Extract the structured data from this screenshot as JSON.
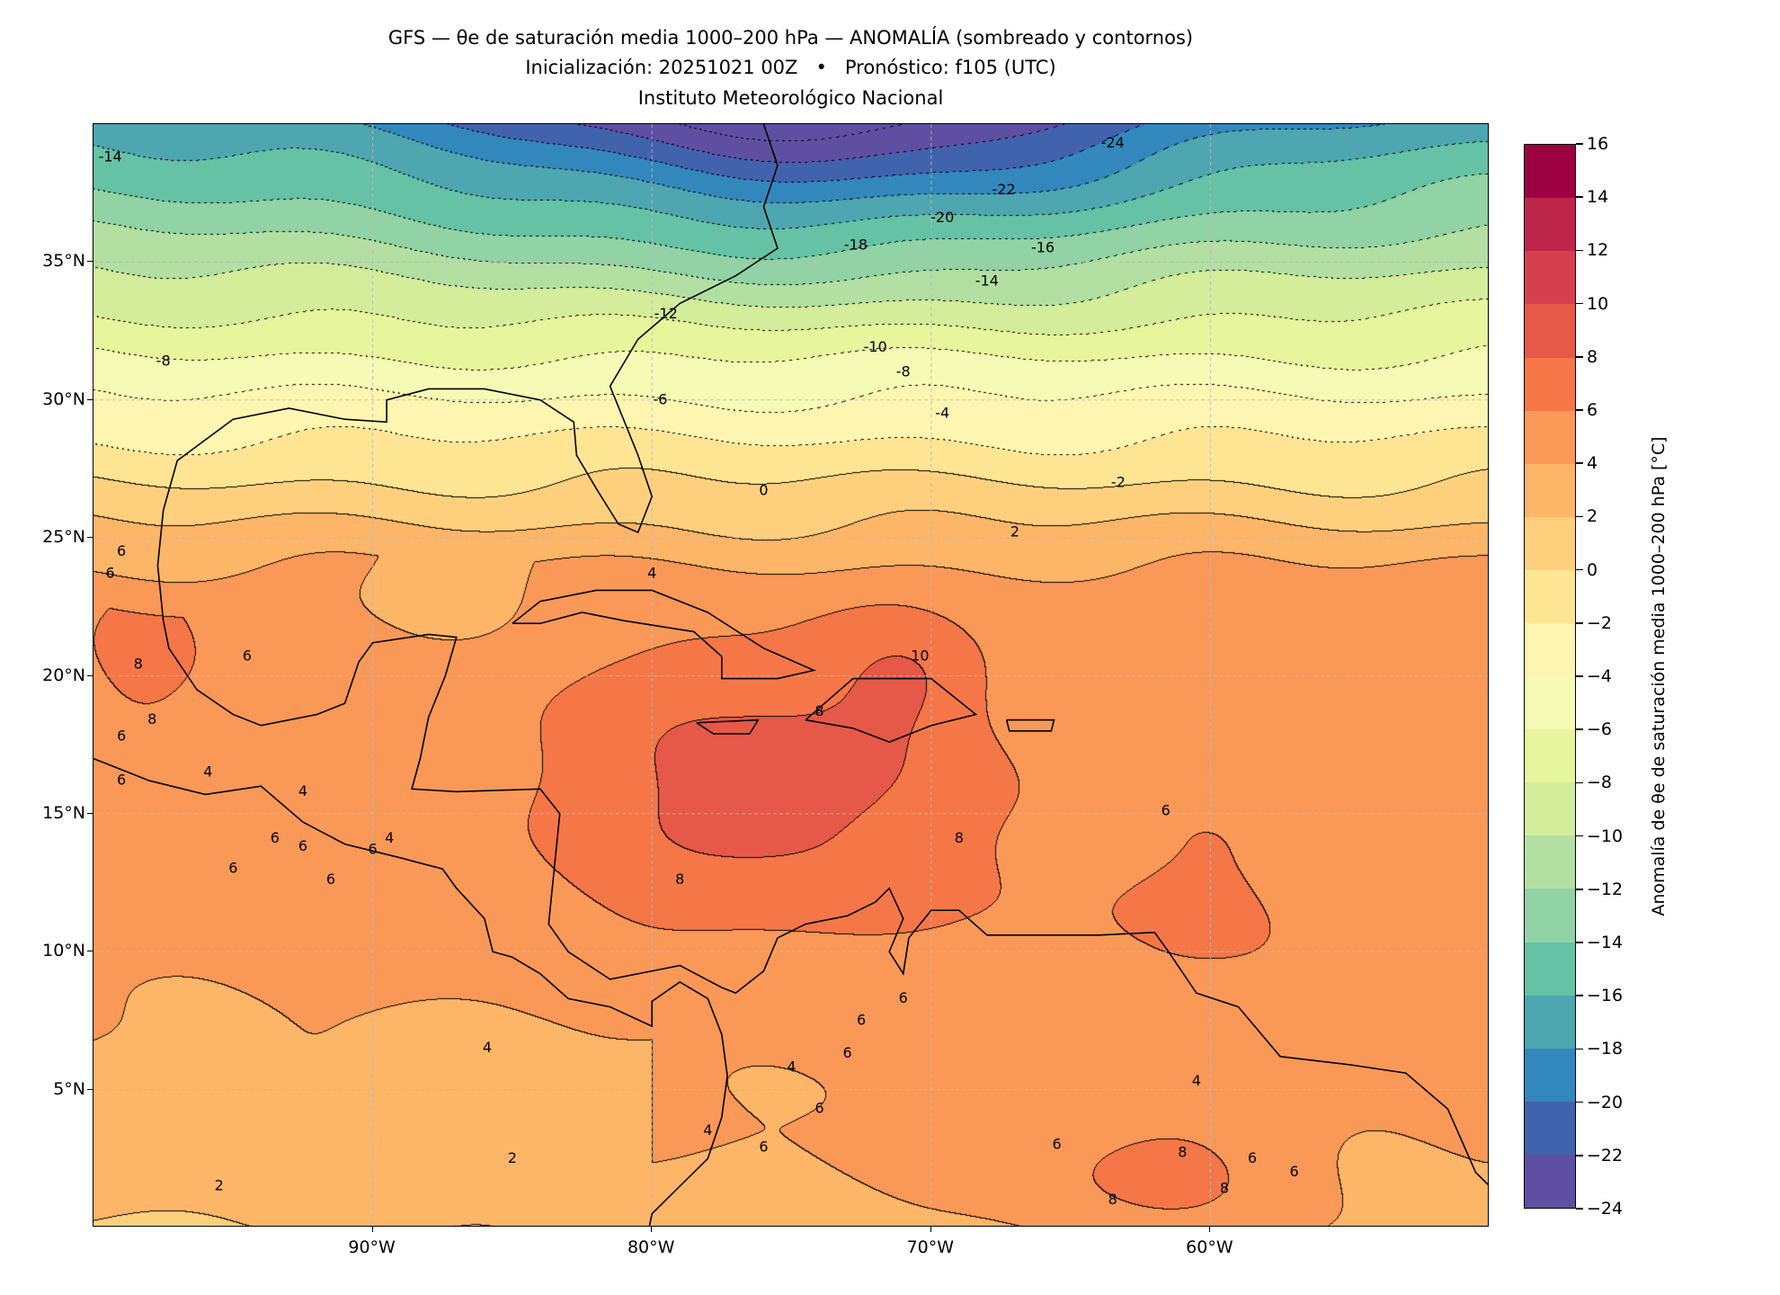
{
  "header": {
    "title_line1": "GFS — θe de saturación media 1000–200 hPa — ANOMALÍA (sombreado y contornos)",
    "title_line2": "Inicialización: 20251021 00Z   •   Pronóstico: f105 (UTC)",
    "title_line3": "Instituto Meteorológico Nacional"
  },
  "chart_data": {
    "type": "heatmap",
    "subtype": "filled-contour map",
    "title": "GFS — θe de saturación media 1000–200 hPa — ANOMALÍA (sombreado y contornos)",
    "lon_range": [
      -100,
      -50
    ],
    "lat_range": [
      0,
      40
    ],
    "lat_ticks": [
      {
        "value": 5,
        "label": "5°N"
      },
      {
        "value": 10,
        "label": "10°N"
      },
      {
        "value": 15,
        "label": "15°N"
      },
      {
        "value": 20,
        "label": "20°N"
      },
      {
        "value": 25,
        "label": "25°N"
      },
      {
        "value": 30,
        "label": "30°N"
      },
      {
        "value": 35,
        "label": "35°N"
      }
    ],
    "lon_ticks": [
      {
        "value": -90,
        "label": "90°W"
      },
      {
        "value": -80,
        "label": "80°W"
      },
      {
        "value": -70,
        "label": "70°W"
      },
      {
        "value": -60,
        "label": "60°W"
      }
    ],
    "grid": true,
    "levels": [
      -24,
      -22,
      -20,
      -18,
      -16,
      -14,
      -12,
      -10,
      -8,
      -6,
      -4,
      -2,
      0,
      2,
      4,
      6,
      8,
      10,
      12,
      14,
      16
    ],
    "level_labels": [
      "−24",
      "−22",
      "−20",
      "−18",
      "−16",
      "−14",
      "−12",
      "−10",
      "−8",
      "−6",
      "−4",
      "−2",
      "0",
      "2",
      "4",
      "6",
      "8",
      "10",
      "12",
      "14",
      "16"
    ],
    "colors": [
      "#5e4fa2",
      "#4163ae",
      "#3288bd",
      "#4ea6b0",
      "#66c2a5",
      "#91d3a4",
      "#b3e0a2",
      "#d3ed9b",
      "#e7f59c",
      "#f5fab5",
      "#fef6b0",
      "#fee593",
      "#fed07e",
      "#fdb567",
      "#fa9857",
      "#f57748",
      "#e65948",
      "#d5404e",
      "#be254a",
      "#9e0142"
    ],
    "colorbar_label": "Anomalía de θe de saturación media 1000–200 hPa [°C]",
    "colorbar_placement": "right",
    "contour_interval": 2,
    "negative_contour_style": "dotted",
    "contour_labels": [
      {
        "lon": -63.5,
        "lat": 39.3,
        "text": "-24"
      },
      {
        "lon": -67.4,
        "lat": 37.6,
        "text": "-22"
      },
      {
        "lon": -69.6,
        "lat": 36.6,
        "text": "-20"
      },
      {
        "lon": -72.7,
        "lat": 35.6,
        "text": "-18"
      },
      {
        "lon": -66.0,
        "lat": 35.5,
        "text": "-16"
      },
      {
        "lon": -68.0,
        "lat": 34.3,
        "text": "-14"
      },
      {
        "lon": -99.4,
        "lat": 38.8,
        "text": "-14"
      },
      {
        "lon": -79.5,
        "lat": 33.1,
        "text": "-12"
      },
      {
        "lon": -72.0,
        "lat": 31.9,
        "text": "-10"
      },
      {
        "lon": -71.0,
        "lat": 31.0,
        "text": "-8"
      },
      {
        "lon": -97.5,
        "lat": 31.4,
        "text": "-8"
      },
      {
        "lon": -79.7,
        "lat": 30.0,
        "text": "-6"
      },
      {
        "lon": -69.6,
        "lat": 29.5,
        "text": "-4"
      },
      {
        "lon": -63.3,
        "lat": 27.0,
        "text": "-2"
      },
      {
        "lon": -76.0,
        "lat": 26.7,
        "text": "0"
      },
      {
        "lon": -67.0,
        "lat": 25.2,
        "text": "2"
      },
      {
        "lon": -80.0,
        "lat": 23.7,
        "text": "4"
      },
      {
        "lon": -94.5,
        "lat": 20.7,
        "text": "6"
      },
      {
        "lon": -70.4,
        "lat": 20.7,
        "text": "10"
      },
      {
        "lon": -74.0,
        "lat": 18.7,
        "text": "8"
      },
      {
        "lon": -69.0,
        "lat": 14.1,
        "text": "8"
      },
      {
        "lon": -79.0,
        "lat": 12.6,
        "text": "8"
      },
      {
        "lon": -61.6,
        "lat": 15.1,
        "text": "6"
      },
      {
        "lon": -95.9,
        "lat": 16.5,
        "text": "4"
      },
      {
        "lon": -92.5,
        "lat": 15.8,
        "text": "4"
      },
      {
        "lon": -89.4,
        "lat": 14.1,
        "text": "4"
      },
      {
        "lon": -93.5,
        "lat": 14.1,
        "text": "6"
      },
      {
        "lon": -92.5,
        "lat": 13.8,
        "text": "6"
      },
      {
        "lon": -90.0,
        "lat": 13.7,
        "text": "6"
      },
      {
        "lon": -91.5,
        "lat": 12.6,
        "text": "6"
      },
      {
        "lon": -95.0,
        "lat": 13.0,
        "text": "6"
      },
      {
        "lon": -99.0,
        "lat": 24.5,
        "text": "6"
      },
      {
        "lon": -99.4,
        "lat": 23.7,
        "text": "6"
      },
      {
        "lon": -99.0,
        "lat": 17.8,
        "text": "6"
      },
      {
        "lon": -99.0,
        "lat": 16.2,
        "text": "6"
      },
      {
        "lon": -98.4,
        "lat": 20.4,
        "text": "8"
      },
      {
        "lon": -97.9,
        "lat": 18.4,
        "text": "8"
      },
      {
        "lon": -71.0,
        "lat": 8.3,
        "text": "6"
      },
      {
        "lon": -72.5,
        "lat": 7.5,
        "text": "6"
      },
      {
        "lon": -73.0,
        "lat": 6.3,
        "text": "6"
      },
      {
        "lon": -85.9,
        "lat": 6.5,
        "text": "4"
      },
      {
        "lon": -75.0,
        "lat": 5.8,
        "text": "4"
      },
      {
        "lon": -74.0,
        "lat": 4.3,
        "text": "6"
      },
      {
        "lon": -78.0,
        "lat": 3.5,
        "text": "4"
      },
      {
        "lon": -76.0,
        "lat": 2.9,
        "text": "6"
      },
      {
        "lon": -65.5,
        "lat": 3.0,
        "text": "6"
      },
      {
        "lon": -60.5,
        "lat": 5.3,
        "text": "4"
      },
      {
        "lon": -61.0,
        "lat": 2.7,
        "text": "8"
      },
      {
        "lon": -59.5,
        "lat": 1.4,
        "text": "8"
      },
      {
        "lon": -58.5,
        "lat": 2.5,
        "text": "6"
      },
      {
        "lon": -57.0,
        "lat": 2.0,
        "text": "6"
      },
      {
        "lon": -63.5,
        "lat": 1.0,
        "text": "8"
      },
      {
        "lon": -85.0,
        "lat": 2.5,
        "text": "2"
      },
      {
        "lon": -95.5,
        "lat": 1.5,
        "text": "2"
      }
    ]
  }
}
